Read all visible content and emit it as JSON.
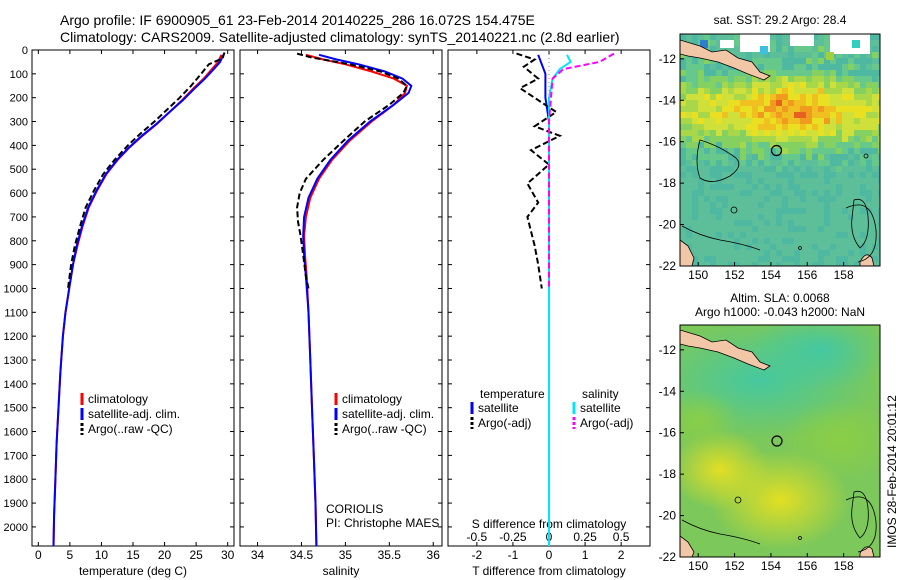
{
  "header": {
    "line1": "Argo profile: IF 6900905_61 23-Feb-2014 20140225_286 16.072S 154.475E",
    "line2": "Climatology: CARS2009. Satellite-adjusted climatology: synTS_20140221.nc (2.8d earlier)"
  },
  "colors": {
    "climatology": "#ff0000",
    "satellite": "#0000ff",
    "argo": "#000000",
    "sal_satellite": "#00e5ff",
    "sal_argo": "#ff00ff"
  },
  "chart_data": [
    {
      "id": "temperature",
      "type": "line",
      "xlabel": "temperature (deg C)",
      "ylabel": "",
      "xlim": [
        -1,
        31
      ],
      "ylim": [
        2080,
        0
      ],
      "xticks": [
        0,
        5,
        10,
        15,
        20,
        25,
        30
      ],
      "yticks": [
        0,
        100,
        200,
        300,
        400,
        500,
        600,
        700,
        800,
        900,
        1000,
        1100,
        1200,
        1300,
        1400,
        1500,
        1600,
        1700,
        1800,
        1900,
        2000
      ],
      "legend": [
        "climatology",
        "satellite-adj. clim.",
        "Argo(..raw -QC)"
      ],
      "series": [
        {
          "name": "climatology",
          "color": "red",
          "style": "solid",
          "points": [
            [
              29.0,
              20
            ],
            [
              28.5,
              50
            ],
            [
              27.5,
              80
            ],
            [
              26.2,
              120
            ],
            [
              24.6,
              160
            ],
            [
              22.8,
              210
            ],
            [
              20.8,
              260
            ],
            [
              18.8,
              310
            ],
            [
              16.5,
              360
            ],
            [
              14.4,
              410
            ],
            [
              12.6,
              460
            ],
            [
              10.8,
              520
            ],
            [
              9.3,
              590
            ],
            [
              8.0,
              660
            ],
            [
              7.0,
              740
            ],
            [
              6.2,
              820
            ],
            [
              5.5,
              900
            ],
            [
              4.9,
              1000
            ],
            [
              4.3,
              1100
            ],
            [
              3.9,
              1200
            ],
            [
              3.5,
              1350
            ],
            [
              3.2,
              1500
            ],
            [
              2.9,
              1650
            ],
            [
              2.7,
              1800
            ],
            [
              2.5,
              1950
            ],
            [
              2.4,
              2080
            ]
          ]
        },
        {
          "name": "satellite-adj. clim.",
          "color": "blue",
          "style": "solid",
          "points": [
            [
              29.3,
              20
            ],
            [
              28.8,
              50
            ],
            [
              27.8,
              80
            ],
            [
              26.4,
              120
            ],
            [
              24.8,
              160
            ],
            [
              22.9,
              210
            ],
            [
              20.8,
              260
            ],
            [
              18.7,
              310
            ],
            [
              16.4,
              360
            ],
            [
              14.3,
              410
            ],
            [
              12.5,
              460
            ],
            [
              10.7,
              520
            ],
            [
              9.2,
              590
            ],
            [
              7.9,
              660
            ],
            [
              6.9,
              740
            ],
            [
              6.1,
              820
            ],
            [
              5.5,
              900
            ],
            [
              4.9,
              1000
            ],
            [
              4.3,
              1100
            ],
            [
              3.9,
              1200
            ],
            [
              3.5,
              1350
            ],
            [
              3.2,
              1500
            ],
            [
              2.9,
              1650
            ],
            [
              2.7,
              1800
            ],
            [
              2.5,
              1950
            ],
            [
              2.4,
              2080
            ]
          ]
        },
        {
          "name": "Argo(..raw -QC)",
          "color": "black",
          "style": "dashed",
          "points": [
            [
              29.5,
              10
            ],
            [
              29.2,
              35
            ],
            [
              27.0,
              60
            ],
            [
              25.8,
              100
            ],
            [
              24.2,
              150
            ],
            [
              22.4,
              200
            ],
            [
              20.4,
              250
            ],
            [
              18.4,
              300
            ],
            [
              16.2,
              350
            ],
            [
              14.2,
              400
            ],
            [
              12.1,
              460
            ],
            [
              10.3,
              520
            ],
            [
              8.8,
              590
            ],
            [
              7.5,
              660
            ],
            [
              6.6,
              740
            ],
            [
              5.8,
              820
            ],
            [
              5.2,
              900
            ],
            [
              4.7,
              1000
            ]
          ]
        }
      ]
    },
    {
      "id": "salinity",
      "type": "line",
      "xlabel": "salinity",
      "ylabel": "",
      "xlim": [
        33.8,
        36.1
      ],
      "ylim": [
        2080,
        0
      ],
      "xticks": [
        34,
        34.5,
        35,
        35.5,
        36
      ],
      "legend": [
        "climatology",
        "satellite-adj. clim.",
        "Argo(..raw -QC)"
      ],
      "annotation": [
        "CORIOLIS",
        "PI: Christophe MAES"
      ],
      "series": [
        {
          "name": "climatology",
          "color": "red",
          "style": "solid",
          "points": [
            [
              34.55,
              20
            ],
            [
              34.75,
              40
            ],
            [
              35.0,
              60
            ],
            [
              35.3,
              90
            ],
            [
              35.55,
              120
            ],
            [
              35.7,
              150
            ],
            [
              35.68,
              180
            ],
            [
              35.55,
              230
            ],
            [
              35.3,
              300
            ],
            [
              35.05,
              380
            ],
            [
              34.85,
              460
            ],
            [
              34.7,
              540
            ],
            [
              34.6,
              620
            ],
            [
              34.55,
              700
            ],
            [
              34.53,
              780
            ],
            [
              34.54,
              860
            ],
            [
              34.56,
              950
            ],
            [
              34.58,
              1100
            ],
            [
              34.6,
              1300
            ],
            [
              34.62,
              1500
            ],
            [
              34.64,
              1700
            ],
            [
              34.66,
              1900
            ],
            [
              34.67,
              2080
            ]
          ]
        },
        {
          "name": "satellite-adj. clim.",
          "color": "blue",
          "style": "solid",
          "points": [
            [
              34.7,
              20
            ],
            [
              34.9,
              40
            ],
            [
              35.15,
              60
            ],
            [
              35.45,
              90
            ],
            [
              35.65,
              120
            ],
            [
              35.75,
              150
            ],
            [
              35.72,
              180
            ],
            [
              35.55,
              230
            ],
            [
              35.28,
              300
            ],
            [
              35.03,
              380
            ],
            [
              34.83,
              460
            ],
            [
              34.68,
              540
            ],
            [
              34.58,
              620
            ],
            [
              34.53,
              700
            ],
            [
              34.52,
              780
            ],
            [
              34.53,
              860
            ],
            [
              34.55,
              950
            ],
            [
              34.58,
              1100
            ],
            [
              34.6,
              1300
            ],
            [
              34.62,
              1500
            ],
            [
              34.64,
              1700
            ],
            [
              34.66,
              1900
            ],
            [
              34.67,
              2080
            ]
          ]
        },
        {
          "name": "Argo(..raw -QC)",
          "color": "black",
          "style": "dashed",
          "points": [
            [
              34.45,
              15
            ],
            [
              34.6,
              30
            ],
            [
              35.05,
              60
            ],
            [
              35.4,
              90
            ],
            [
              35.6,
              120
            ],
            [
              35.7,
              150
            ],
            [
              35.66,
              180
            ],
            [
              35.5,
              230
            ],
            [
              35.22,
              300
            ],
            [
              34.98,
              380
            ],
            [
              34.75,
              460
            ],
            [
              34.55,
              540
            ],
            [
              34.48,
              600
            ],
            [
              34.45,
              660
            ],
            [
              34.46,
              720
            ],
            [
              34.49,
              780
            ],
            [
              34.52,
              860
            ],
            [
              34.55,
              950
            ],
            [
              34.58,
              1000
            ]
          ]
        }
      ]
    },
    {
      "id": "difference",
      "type": "line",
      "xlabel": "T difference from climatology",
      "xlabel_top": "S difference from climatology",
      "xlim": [
        -2.8,
        2.8
      ],
      "ylim": [
        2080,
        0
      ],
      "xticks_t": [
        -2,
        -1,
        0,
        1,
        2
      ],
      "xticks_s_labels": [
        "-0.5",
        "-0.25",
        "0",
        "0.25",
        "0.5"
      ],
      "xticks_s_positions_t": [
        -2,
        -1,
        0,
        1,
        2
      ],
      "legend_titles": [
        "temperature",
        "salinity"
      ],
      "legend": [
        "satellite",
        "Argo(-adj)",
        "satellite",
        "Argo(-adj)"
      ],
      "series": [
        {
          "name": "T satellite",
          "color": "blue",
          "style": "solid",
          "points": [
            [
              -0.3,
              20
            ],
            [
              -0.2,
              60
            ],
            [
              -0.1,
              100
            ],
            [
              -0.1,
              200
            ],
            [
              0,
              300
            ],
            [
              0,
              500
            ],
            [
              0,
              800
            ],
            [
              0,
              1200
            ],
            [
              0,
              2080
            ]
          ]
        },
        {
          "name": "T Argo(-adj)",
          "color": "black",
          "style": "dashed",
          "points": [
            [
              -0.9,
              15
            ],
            [
              -0.4,
              40
            ],
            [
              -0.7,
              70
            ],
            [
              -0.3,
              120
            ],
            [
              -0.8,
              160
            ],
            [
              -0.2,
              220
            ],
            [
              0.2,
              260
            ],
            [
              -0.4,
              320
            ],
            [
              0.3,
              360
            ],
            [
              -0.5,
              420
            ],
            [
              0,
              480
            ],
            [
              -0.6,
              560
            ],
            [
              -0.3,
              640
            ],
            [
              -0.6,
              700
            ],
            [
              -0.5,
              760
            ],
            [
              -0.4,
              820
            ],
            [
              -0.3,
              900
            ],
            [
              -0.2,
              1000
            ]
          ]
        },
        {
          "name": "S satellite",
          "color": "cyan",
          "style": "solid",
          "points": [
            [
              0.5,
              20
            ],
            [
              0.6,
              50
            ],
            [
              0.3,
              80
            ],
            [
              0.1,
              120
            ],
            [
              0,
              200
            ],
            [
              0,
              400
            ],
            [
              0,
              800
            ],
            [
              0,
              1200
            ],
            [
              0,
              2080
            ]
          ]
        },
        {
          "name": "S Argo(-adj)",
          "color": "magenta",
          "style": "dashed",
          "points": [
            [
              1.8,
              15
            ],
            [
              1.4,
              50
            ],
            [
              0.4,
              80
            ],
            [
              0.1,
              120
            ],
            [
              0,
              300
            ],
            [
              0,
              700
            ],
            [
              0,
              1000
            ]
          ]
        }
      ]
    },
    {
      "id": "sst_map",
      "type": "heatmap",
      "title": "sat. SST: 29.2 Argo: 28.4",
      "xticks": [
        150,
        152,
        154,
        156,
        158
      ],
      "yticks": [
        -12,
        -14,
        -16,
        -18,
        -20,
        -22
      ],
      "xlim": [
        149,
        160
      ],
      "ylim": [
        -22,
        -10.8
      ]
    },
    {
      "id": "sla_map",
      "type": "heatmap",
      "title1": "Altim. SLA: 0.0068",
      "title2": "Argo h1000: -0.043 h2000: NaN",
      "xticks": [
        150,
        152,
        154,
        156,
        158
      ],
      "yticks": [
        -12,
        -14,
        -16,
        -18,
        -20,
        -22
      ],
      "xlim": [
        149,
        160
      ],
      "ylim": [
        -22,
        -10.8
      ]
    }
  ],
  "side_label": "IMOS 28-Feb-2014 20:01:12",
  "profile_location": {
    "lon": 154.475,
    "lat": -16.072
  }
}
